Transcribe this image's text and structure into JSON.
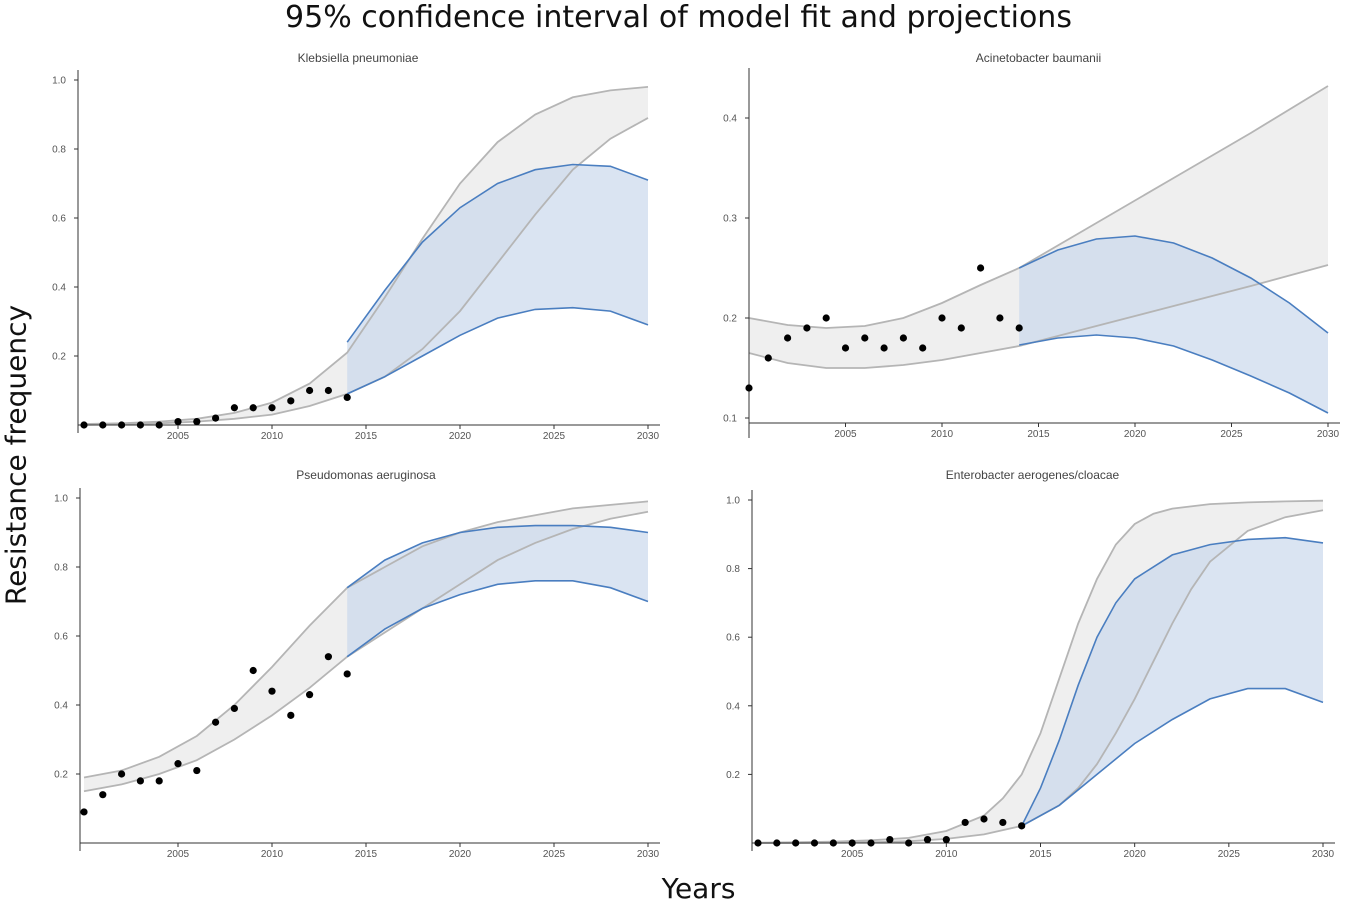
{
  "title": "95% confidence interval of model fit and projections",
  "ylabel": "Resistance frequency",
  "xlabel": "Years",
  "colors": {
    "fit_band": "#efefef",
    "fit_line": "#b5b5b5",
    "proj_band": "#c6d5eb",
    "proj_line": "#4a7ec0",
    "points": "#000000"
  },
  "chart_data": [
    {
      "type": "area",
      "title": "Klebsiella pneumoniae",
      "xlim": [
        2000,
        2030
      ],
      "ylim": [
        0,
        1.0
      ],
      "xticks": [
        2005,
        2010,
        2015,
        2020,
        2025,
        2030
      ],
      "yticks": [
        0.2,
        0.4,
        0.6,
        0.8,
        1.0
      ],
      "ytick_labels": [
        "0.2",
        "0.4",
        "0.6",
        "0.8",
        "1.0"
      ],
      "points": {
        "x": [
          2000,
          2001,
          2002,
          2003,
          2004,
          2005,
          2006,
          2007,
          2008,
          2009,
          2010,
          2011,
          2012,
          2013,
          2014
        ],
        "y": [
          0,
          0,
          0,
          0,
          0,
          0.01,
          0.01,
          0.02,
          0.05,
          0.05,
          0.05,
          0.07,
          0.1,
          0.1,
          0.08
        ]
      },
      "gray_upper": {
        "x": [
          2000,
          2002,
          2004,
          2006,
          2008,
          2010,
          2012,
          2014,
          2016,
          2018,
          2020,
          2022,
          2024,
          2026,
          2028,
          2030
        ],
        "y": [
          0.003,
          0.005,
          0.01,
          0.018,
          0.035,
          0.065,
          0.12,
          0.21,
          0.37,
          0.54,
          0.7,
          0.82,
          0.9,
          0.95,
          0.97,
          0.98
        ]
      },
      "gray_lower": {
        "x": [
          2000,
          2002,
          2004,
          2006,
          2008,
          2010,
          2012,
          2014,
          2016,
          2018,
          2020,
          2022,
          2024,
          2026,
          2028,
          2030
        ],
        "y": [
          0.001,
          0.002,
          0.005,
          0.01,
          0.018,
          0.03,
          0.055,
          0.09,
          0.14,
          0.22,
          0.33,
          0.47,
          0.61,
          0.74,
          0.83,
          0.89
        ]
      },
      "blue_upper": {
        "x": [
          2014,
          2016,
          2018,
          2020,
          2022,
          2024,
          2026,
          2028,
          2030
        ],
        "y": [
          0.24,
          0.39,
          0.53,
          0.63,
          0.7,
          0.74,
          0.755,
          0.75,
          0.71
        ]
      },
      "blue_lower": {
        "x": [
          2014,
          2016,
          2018,
          2020,
          2022,
          2024,
          2026,
          2028,
          2030
        ],
        "y": [
          0.09,
          0.14,
          0.2,
          0.26,
          0.31,
          0.335,
          0.34,
          0.33,
          0.29
        ]
      }
    },
    {
      "type": "area",
      "title": "Acinetobacter baumanii",
      "xlim": [
        2000,
        2030
      ],
      "ylim": [
        0.05,
        0.45
      ],
      "xticks": [
        2005,
        2010,
        2015,
        2020,
        2025,
        2030
      ],
      "yticks": [
        0.1,
        0.2,
        0.3,
        0.4
      ],
      "ytick_labels": [
        "0.1",
        "0.2",
        "0.3",
        "0.4"
      ],
      "points": {
        "x": [
          2000,
          2001,
          2002,
          2003,
          2004,
          2005,
          2006,
          2007,
          2008,
          2009,
          2010,
          2011,
          2012,
          2013,
          2014
        ],
        "y": [
          0.13,
          0.16,
          0.18,
          0.19,
          0.2,
          0.17,
          0.18,
          0.17,
          0.18,
          0.17,
          0.2,
          0.19,
          0.25,
          0.2,
          0.19
        ]
      },
      "gray_upper": {
        "x": [
          2000,
          2002,
          2004,
          2006,
          2008,
          2010,
          2012,
          2014,
          2018,
          2022,
          2026,
          2030
        ],
        "y": [
          0.2,
          0.193,
          0.19,
          0.192,
          0.2,
          0.215,
          0.233,
          0.25,
          0.295,
          0.34,
          0.385,
          0.432
        ]
      },
      "gray_lower": {
        "x": [
          2000,
          2002,
          2004,
          2006,
          2008,
          2010,
          2012,
          2014,
          2018,
          2022,
          2026,
          2030
        ],
        "y": [
          0.165,
          0.155,
          0.15,
          0.15,
          0.153,
          0.158,
          0.165,
          0.172,
          0.192,
          0.212,
          0.232,
          0.253
        ]
      },
      "blue_upper": {
        "x": [
          2014,
          2016,
          2018,
          2020,
          2022,
          2024,
          2026,
          2028,
          2030
        ],
        "y": [
          0.25,
          0.268,
          0.279,
          0.282,
          0.275,
          0.26,
          0.24,
          0.215,
          0.185
        ]
      },
      "blue_lower": {
        "x": [
          2014,
          2016,
          2018,
          2020,
          2022,
          2024,
          2026,
          2028,
          2030
        ],
        "y": [
          0.173,
          0.18,
          0.183,
          0.18,
          0.172,
          0.158,
          0.142,
          0.125,
          0.105
        ]
      }
    },
    {
      "type": "area",
      "title": "Pseudomonas aeruginosa",
      "xlim": [
        2000,
        2030
      ],
      "ylim": [
        0,
        1.0
      ],
      "xticks": [
        2005,
        2010,
        2015,
        2020,
        2025,
        2030
      ],
      "yticks": [
        0.2,
        0.4,
        0.6,
        0.8,
        1.0
      ],
      "ytick_labels": [
        "0.2",
        "0.4",
        "0.6",
        "0.8",
        "1.0"
      ],
      "points": {
        "x": [
          2000,
          2001,
          2002,
          2003,
          2004,
          2005,
          2006,
          2007,
          2008,
          2009,
          2010,
          2011,
          2012,
          2013,
          2014
        ],
        "y": [
          0.09,
          0.14,
          0.2,
          0.18,
          0.18,
          0.23,
          0.21,
          0.35,
          0.39,
          0.5,
          0.44,
          0.37,
          0.43,
          0.54,
          0.49
        ]
      },
      "gray_upper": {
        "x": [
          2000,
          2002,
          2004,
          2006,
          2008,
          2010,
          2012,
          2014,
          2016,
          2018,
          2020,
          2022,
          2024,
          2026,
          2028,
          2030
        ],
        "y": [
          0.19,
          0.21,
          0.25,
          0.31,
          0.4,
          0.51,
          0.63,
          0.74,
          0.8,
          0.86,
          0.9,
          0.93,
          0.95,
          0.97,
          0.98,
          0.99
        ]
      },
      "gray_lower": {
        "x": [
          2000,
          2002,
          2004,
          2006,
          2008,
          2010,
          2012,
          2014,
          2016,
          2018,
          2020,
          2022,
          2024,
          2026,
          2028,
          2030
        ],
        "y": [
          0.15,
          0.17,
          0.2,
          0.24,
          0.3,
          0.37,
          0.45,
          0.54,
          0.61,
          0.68,
          0.75,
          0.82,
          0.87,
          0.91,
          0.94,
          0.96
        ]
      },
      "blue_upper": {
        "x": [
          2014,
          2016,
          2018,
          2020,
          2022,
          2024,
          2026,
          2028,
          2030
        ],
        "y": [
          0.74,
          0.82,
          0.87,
          0.9,
          0.915,
          0.92,
          0.92,
          0.915,
          0.9
        ]
      },
      "blue_lower": {
        "x": [
          2014,
          2016,
          2018,
          2020,
          2022,
          2024,
          2026,
          2028,
          2030
        ],
        "y": [
          0.54,
          0.62,
          0.68,
          0.72,
          0.75,
          0.76,
          0.76,
          0.74,
          0.7
        ]
      }
    },
    {
      "type": "area",
      "title": "Enterobacter aerogenes/cloacae",
      "xlim": [
        2000,
        2030
      ],
      "ylim": [
        0,
        1.0
      ],
      "xticks": [
        2005,
        2010,
        2015,
        2020,
        2025,
        2030
      ],
      "yticks": [
        0.2,
        0.4,
        0.6,
        0.8,
        1.0
      ],
      "ytick_labels": [
        "0.2",
        "0.4",
        "0.6",
        "0.8",
        "1.0"
      ],
      "points": {
        "x": [
          2000,
          2001,
          2002,
          2003,
          2004,
          2005,
          2006,
          2007,
          2008,
          2009,
          2010,
          2011,
          2012,
          2013,
          2014
        ],
        "y": [
          0,
          0,
          0,
          0,
          0,
          0,
          0,
          0.01,
          0,
          0.01,
          0.01,
          0.06,
          0.07,
          0.06,
          0.05
        ]
      },
      "gray_upper": {
        "x": [
          2000,
          2002,
          2004,
          2006,
          2008,
          2010,
          2012,
          2013,
          2014,
          2015,
          2016,
          2017,
          2018,
          2019,
          2020,
          2021,
          2022,
          2024,
          2026,
          2028,
          2030
        ],
        "y": [
          0.001,
          0.002,
          0.004,
          0.008,
          0.015,
          0.035,
          0.08,
          0.13,
          0.2,
          0.32,
          0.48,
          0.64,
          0.77,
          0.87,
          0.93,
          0.96,
          0.975,
          0.988,
          0.993,
          0.996,
          0.998
        ]
      },
      "gray_lower": {
        "x": [
          2000,
          2002,
          2004,
          2006,
          2008,
          2010,
          2012,
          2014,
          2016,
          2017,
          2018,
          2019,
          2020,
          2021,
          2022,
          2023,
          2024,
          2026,
          2028,
          2030
        ],
        "y": [
          0,
          0,
          0.001,
          0.002,
          0.005,
          0.012,
          0.025,
          0.05,
          0.11,
          0.16,
          0.23,
          0.32,
          0.42,
          0.53,
          0.64,
          0.74,
          0.82,
          0.91,
          0.95,
          0.97
        ]
      },
      "blue_upper": {
        "x": [
          2014,
          2015,
          2016,
          2017,
          2018,
          2019,
          2020,
          2022,
          2024,
          2026,
          2028,
          2030
        ],
        "y": [
          0.05,
          0.16,
          0.3,
          0.46,
          0.6,
          0.7,
          0.77,
          0.84,
          0.87,
          0.885,
          0.89,
          0.875
        ]
      },
      "blue_lower": {
        "x": [
          2014,
          2016,
          2018,
          2020,
          2022,
          2024,
          2026,
          2028,
          2030
        ],
        "y": [
          0.05,
          0.11,
          0.2,
          0.29,
          0.36,
          0.42,
          0.45,
          0.45,
          0.41
        ]
      }
    }
  ]
}
